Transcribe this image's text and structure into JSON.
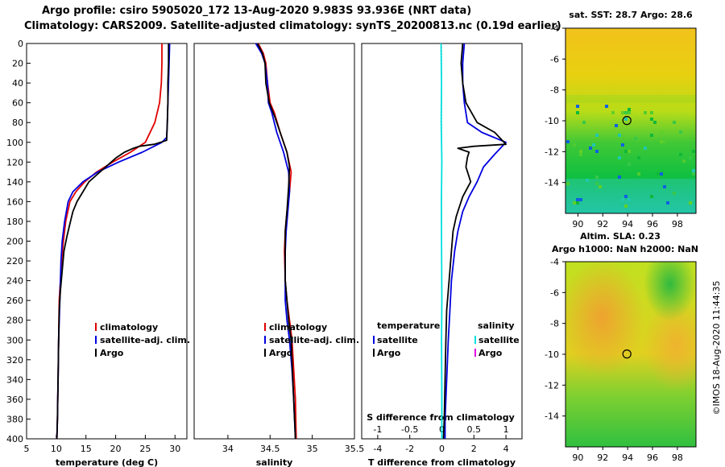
{
  "header": {
    "line1": "Argo profile: csiro 5905020_172 13-Aug-2020 9.983S 93.936E (NRT data)",
    "line2": "Climatology: CARS2009. Satellite-adjusted climatology: synTS_20200813.nc (0.19d earlier)"
  },
  "colors": {
    "climatology": "#e00000",
    "satellite": "#0000e0",
    "argo": "#000000",
    "cyan": "#00e0e0",
    "magenta": "#e000e0"
  },
  "chart_data": [
    {
      "type": "line",
      "id": "temperature",
      "xlabel": "temperature (deg C)",
      "ylabel": "",
      "xlim": [
        5,
        32
      ],
      "ylim": [
        400,
        0
      ],
      "xticks": [
        5,
        10,
        15,
        20,
        25,
        30
      ],
      "yticks": [
        0,
        20,
        40,
        60,
        80,
        100,
        120,
        140,
        160,
        180,
        200,
        220,
        240,
        260,
        280,
        300,
        320,
        340,
        360,
        380,
        400
      ],
      "legend": [
        "climatology",
        "satellite-adj. clim.",
        "Argo"
      ],
      "series": [
        {
          "name": "climatology",
          "color": "#e00000",
          "x": [
            27.8,
            27.8,
            27.7,
            27.4,
            26.6,
            25.0,
            22.5,
            19.5,
            16.8,
            14.8,
            13.3,
            12.3,
            11.6,
            11.2,
            10.9,
            10.7,
            10.5,
            10.4,
            10.3,
            10.2,
            10.1
          ],
          "y": [
            0,
            20,
            40,
            60,
            80,
            100,
            110,
            120,
            130,
            140,
            150,
            160,
            180,
            200,
            220,
            240,
            260,
            300,
            340,
            380,
            400
          ]
        },
        {
          "name": "satellite-adj. clim.",
          "color": "#0000e0",
          "x": [
            29.1,
            29.0,
            28.9,
            28.8,
            28.7,
            28.6,
            27.8,
            24.5,
            20.5,
            17.0,
            14.5,
            12.8,
            12.0,
            11.4,
            11.0,
            10.8,
            10.6,
            10.4,
            10.3,
            10.2,
            10.1
          ],
          "y": [
            0,
            20,
            40,
            60,
            80,
            95,
            100,
            110,
            120,
            130,
            140,
            150,
            160,
            180,
            200,
            220,
            260,
            300,
            340,
            380,
            400
          ]
        },
        {
          "name": "Argo",
          "color": "#000000",
          "x": [
            28.9,
            28.9,
            28.8,
            28.8,
            28.7,
            28.6,
            26.5,
            24.0,
            23.0,
            21.5,
            20.0,
            18.5,
            17.0,
            15.5,
            14.5,
            13.5,
            12.8,
            12.4,
            11.8,
            11.3,
            11.0,
            10.7,
            10.5,
            10.4,
            10.3,
            10.2,
            10.1
          ],
          "y": [
            0,
            20,
            40,
            60,
            80,
            98,
            102,
            104,
            106,
            110,
            116,
            124,
            132,
            140,
            150,
            160,
            170,
            180,
            195,
            210,
            230,
            250,
            270,
            300,
            340,
            380,
            400
          ]
        }
      ]
    },
    {
      "type": "line",
      "id": "salinity",
      "xlabel": "salinity",
      "xlim": [
        33.6,
        35.5
      ],
      "ylim": [
        400,
        0
      ],
      "xticks": [
        34,
        34.5,
        35,
        35.5
      ],
      "legend": [
        "climatology",
        "satellite-adj. clim.",
        "Argo"
      ],
      "series": [
        {
          "name": "climatology",
          "color": "#e00000",
          "x": [
            34.36,
            34.42,
            34.45,
            34.47,
            34.5,
            34.55,
            34.62,
            34.7,
            34.75,
            34.73,
            34.7,
            34.68,
            34.67,
            34.68,
            34.7,
            34.73,
            34.76,
            34.78,
            34.8,
            34.81
          ],
          "y": [
            0,
            10,
            20,
            40,
            60,
            70,
            90,
            110,
            130,
            150,
            170,
            190,
            210,
            240,
            260,
            280,
            300,
            330,
            360,
            400
          ]
        },
        {
          "name": "satellite-adj. clim.",
          "color": "#0000e0",
          "x": [
            34.33,
            34.4,
            34.44,
            34.47,
            34.48,
            34.52,
            34.58,
            34.66,
            34.72,
            34.73,
            34.71,
            34.69,
            34.68,
            34.68,
            34.68,
            34.7,
            34.73,
            34.76,
            34.78,
            34.8
          ],
          "y": [
            0,
            10,
            20,
            40,
            60,
            70,
            90,
            110,
            130,
            150,
            170,
            190,
            210,
            240,
            260,
            280,
            300,
            330,
            360,
            400
          ]
        },
        {
          "name": "Argo",
          "color": "#000000",
          "x": [
            34.35,
            34.41,
            34.44,
            34.45,
            34.49,
            34.56,
            34.62,
            34.7,
            34.73,
            34.72,
            34.7,
            34.68,
            34.68,
            34.68,
            34.7,
            34.72,
            34.75,
            34.77,
            34.8
          ],
          "y": [
            0,
            10,
            20,
            40,
            60,
            75,
            90,
            110,
            125,
            145,
            170,
            190,
            210,
            240,
            260,
            280,
            300,
            340,
            400
          ]
        }
      ]
    },
    {
      "type": "line",
      "id": "difference",
      "xlabel": "T difference from climatology",
      "xlabel2": "S difference from climatology",
      "xlim": [
        -5,
        5
      ],
      "ylim": [
        400,
        0
      ],
      "xticks": [
        -4,
        -2,
        0,
        2,
        4
      ],
      "xticks2": [
        -1,
        -0.5,
        0,
        0.5,
        1
      ],
      "legend_left_title": "temperature",
      "legend_right_title": "salinity",
      "legend_left": [
        "satellite",
        "Argo"
      ],
      "legend_right": [
        "satellite",
        "Argo"
      ],
      "series": [
        {
          "name": "T satellite",
          "color": "#0000e0",
          "x": [
            1.4,
            1.3,
            1.3,
            1.4,
            1.6,
            2.5,
            4.0,
            3.3,
            2.6,
            2.2,
            1.7,
            1.3,
            1.0,
            0.8,
            0.6,
            0.5,
            0.4,
            0.3,
            0.2,
            0.2
          ],
          "y": [
            0,
            20,
            40,
            60,
            80,
            90,
            100,
            112,
            125,
            140,
            155,
            170,
            190,
            210,
            240,
            270,
            300,
            340,
            380,
            400
          ]
        },
        {
          "name": "T Argo",
          "color": "#000000",
          "x": [
            1.3,
            1.2,
            1.3,
            1.5,
            2.2,
            3.3,
            4.0,
            2.0,
            1.0,
            1.7,
            1.6,
            1.5,
            1.8,
            1.3,
            1.1,
            0.9,
            0.7,
            0.6,
            0.5,
            0.4,
            0.3,
            0.25,
            0.2,
            0.15,
            0.1
          ],
          "y": [
            0,
            20,
            40,
            60,
            80,
            90,
            102,
            104,
            106,
            110,
            115,
            125,
            140,
            155,
            165,
            175,
            190,
            210,
            230,
            250,
            270,
            300,
            340,
            380,
            400
          ]
        },
        {
          "name": "S satellite",
          "color": "#00e0e0",
          "x": [
            -0.05,
            -0.02,
            -0.04,
            0.0,
            -0.03,
            -0.02,
            0.0,
            -0.02,
            0.0,
            0.0
          ],
          "y": [
            0,
            40,
            80,
            120,
            160,
            200,
            260,
            300,
            360,
            400
          ]
        },
        {
          "name": "S Argo",
          "color": "#e000e0",
          "x": [],
          "y": []
        }
      ]
    }
  ],
  "maps": [
    {
      "id": "sst-map",
      "title": "sat. SST: 28.7 Argo: 28.6",
      "xticks": [
        "90",
        "92",
        "94",
        "96",
        "98"
      ],
      "yticks": [
        "-4",
        "-6",
        "-8",
        "-10",
        "-12",
        "-14"
      ],
      "lon_range": [
        89,
        99.5
      ],
      "lat_range": [
        -16,
        -4
      ],
      "profile_lon": 93.94,
      "profile_lat": -9.98
    },
    {
      "id": "sla-map",
      "title1": "Altim. SLA: 0.23",
      "title2": "Argo h1000: NaN h2000: NaN",
      "xticks": [
        "90",
        "92",
        "94",
        "96",
        "98"
      ],
      "yticks": [
        "-4",
        "-6",
        "-8",
        "-10",
        "-12",
        "-14"
      ],
      "lon_range": [
        89,
        99.5
      ],
      "lat_range": [
        -16,
        -4
      ],
      "profile_lon": 93.94,
      "profile_lat": -9.98
    }
  ],
  "footer": {
    "credit": "©IMOS 18-Aug-2020 11:44:35"
  }
}
